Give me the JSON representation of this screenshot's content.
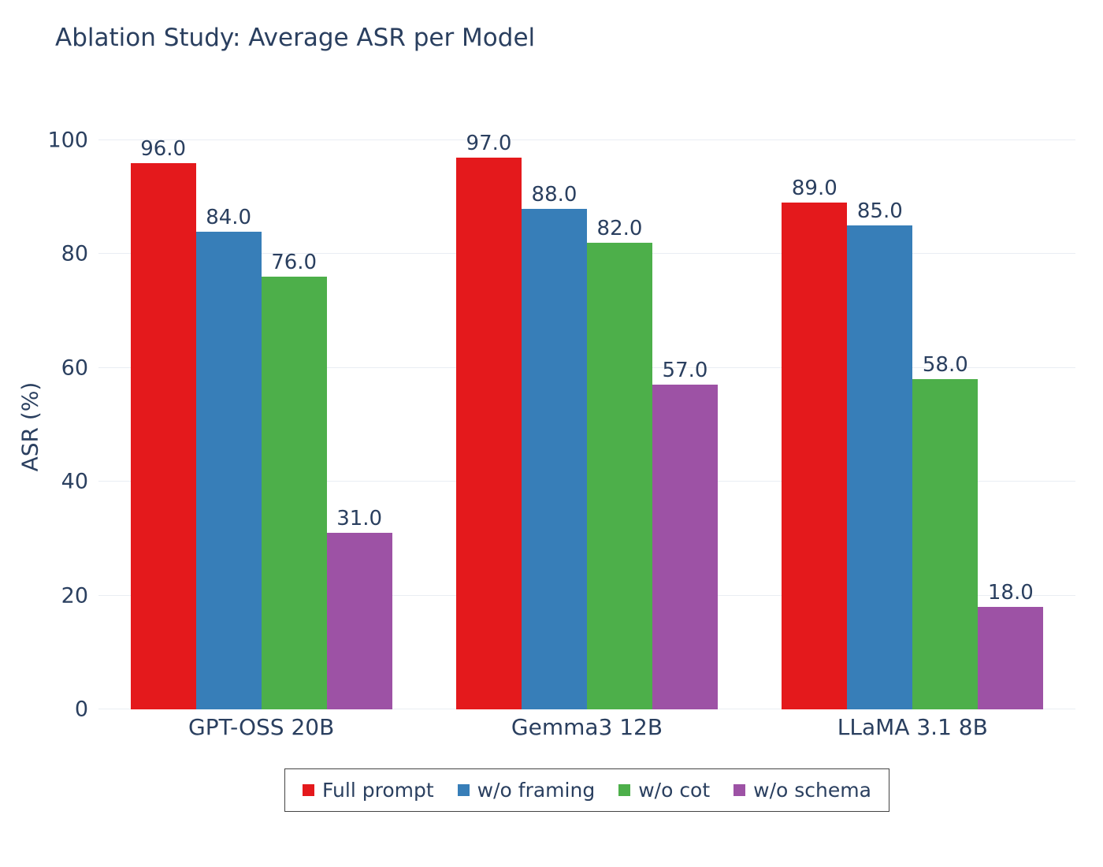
{
  "chart_data": {
    "type": "bar",
    "title": "Ablation Study: Average ASR per Model",
    "xlabel": "",
    "ylabel": "ASR (%)",
    "ylim": [
      0,
      100
    ],
    "yticks": [
      0,
      20,
      40,
      60,
      80,
      100
    ],
    "grid": true,
    "legend_position": "bottom-center",
    "value_label_decimals": 1,
    "categories": [
      "GPT-OSS 20B",
      "Gemma3 12B",
      "LLaMA 3.1 8B"
    ],
    "series": [
      {
        "name": "Full prompt",
        "color": "#e4191c",
        "values": [
          96.0,
          97.0,
          89.0
        ]
      },
      {
        "name": "w/o framing",
        "color": "#377eb8",
        "values": [
          84.0,
          88.0,
          85.0
        ]
      },
      {
        "name": "w/o cot",
        "color": "#4daf4a",
        "values": [
          76.0,
          82.0,
          58.0
        ]
      },
      {
        "name": "w/o schema",
        "color": "#9d52a5",
        "values": [
          31.0,
          57.0,
          18.0
        ]
      }
    ]
  },
  "colors": {
    "text": "#2a3f5f",
    "gridline": "#e9edf3",
    "background": "#ffffff",
    "legend_border": "#444444"
  }
}
